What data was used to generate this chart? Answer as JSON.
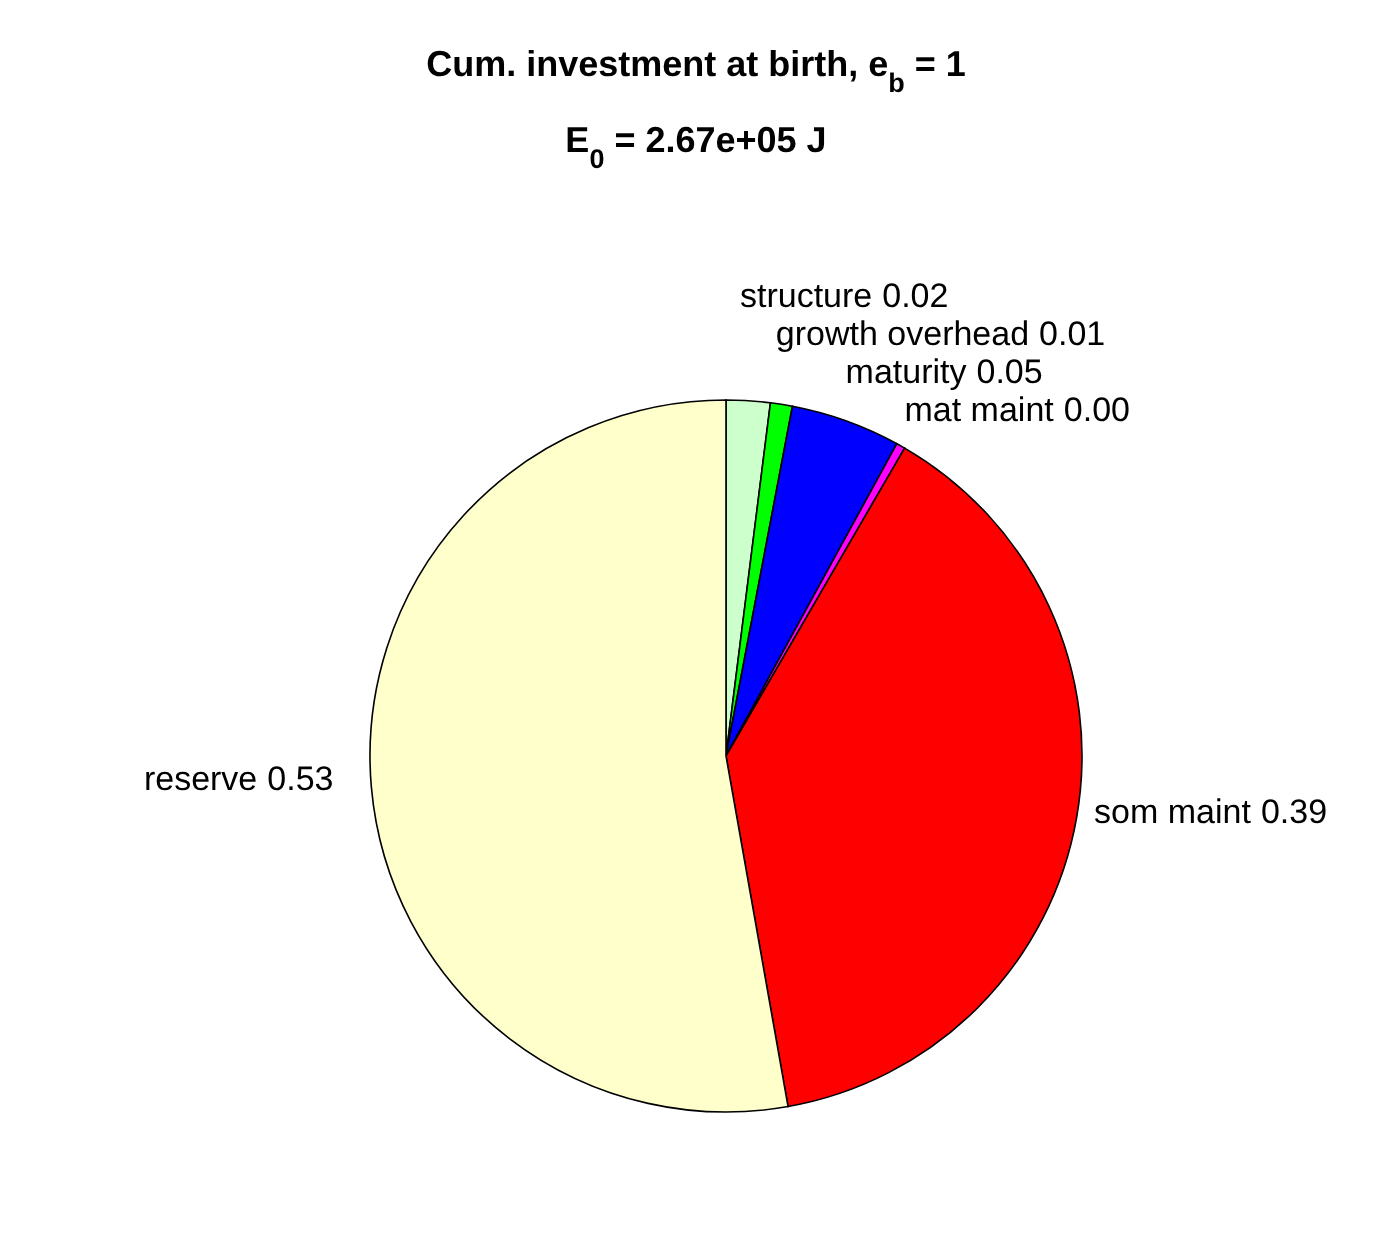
{
  "chart_data": {
    "type": "pie",
    "title": "Cum. investment at birth, e$_{b}$ = 1",
    "subtitle": "E$_{0}$ = 2.67e+05 J",
    "categories": [
      "structure",
      "growth overhead",
      "maturity",
      "mat maint",
      "som maint",
      "reserve"
    ],
    "values": [
      0.02,
      0.01,
      0.05,
      0.004,
      0.39,
      0.53
    ],
    "colors": [
      "#ccffcc",
      "#00ff00",
      "#0000ff",
      "#ff00ff",
      "#ff0000",
      "#ffffcc"
    ],
    "value_labels": [
      "0.02",
      "0.01",
      "0.05",
      "0.00",
      "0.39",
      "0.53"
    ]
  }
}
